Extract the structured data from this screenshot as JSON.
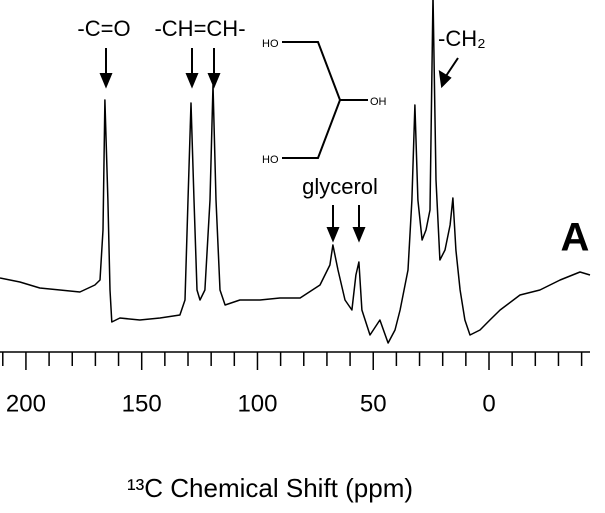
{
  "chart_data": {
    "type": "line",
    "xlabel": "¹³C Chemical Shift (ppm)",
    "panel_label": "A",
    "annotations": [
      "-C=O",
      "-CH=CH-",
      "glycerol",
      "-CH₂"
    ],
    "structure_labels": [
      "HO",
      "OH",
      "HO"
    ],
    "xlim": [
      211.2,
      -50.1
    ],
    "xticks": [
      200,
      150,
      100,
      50,
      0
    ],
    "minor_xticks": [
      210,
      190,
      180,
      170,
      160,
      140,
      130,
      120,
      110,
      90,
      80,
      70,
      60,
      40,
      30,
      20,
      10,
      -10,
      -20,
      -30,
      -40
    ],
    "color": "#000000",
    "series": [
      {
        "x": [
          211.2,
          202.6,
          194.0,
          185.3,
          176.7,
          170.2,
          168.0,
          166.7,
          165.9,
          164.6,
          163.7,
          162.9,
          159.4,
          150.8,
          142.1,
          133.5,
          131.3,
          130.0,
          128.7,
          127.4,
          126.1,
          124.8,
          122.7,
          120.5,
          119.2,
          117.9,
          116.2,
          114.0,
          107.6,
          98.9,
          90.3,
          81.6,
          73.0,
          68.7,
          67.4,
          65.2,
          62.2,
          59.2,
          57.5,
          56.2,
          54.9,
          51.4,
          47.1,
          43.6,
          40.6,
          38.4,
          35.0,
          33.3,
          32.0,
          30.7,
          28.9,
          27.2,
          25.5,
          24.2,
          22.9,
          21.2,
          19.0,
          16.8,
          15.6,
          14.3,
          12.5,
          10.4,
          8.2,
          3.9,
          -0.4,
          -4.8,
          -13.4,
          -22.0,
          -30.7,
          -39.3,
          -43.6
        ],
        "values": [
          82,
          78,
          72,
          70,
          68,
          75,
          80,
          130,
          260,
          160,
          70,
          38,
          42,
          40,
          42,
          45,
          60,
          160,
          257,
          160,
          70,
          60,
          70,
          160,
          275,
          160,
          70,
          55,
          60,
          60,
          62,
          62,
          75,
          95,
          115,
          90,
          60,
          50,
          85,
          98,
          50,
          25,
          40,
          17,
          30,
          50,
          90,
          160,
          255,
          160,
          120,
          130,
          150,
          365,
          180,
          100,
          110,
          135,
          162,
          110,
          70,
          40,
          25,
          30,
          40,
          50,
          65,
          70,
          80,
          88,
          85
        ]
      }
    ]
  }
}
